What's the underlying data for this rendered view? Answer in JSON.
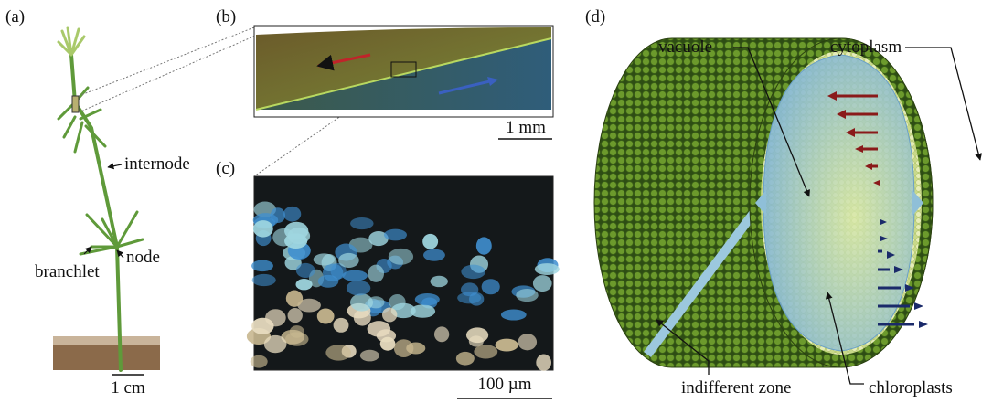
{
  "panels": {
    "a": {
      "label": "(a)",
      "annotations": [
        "internode",
        "branchlet",
        "node"
      ],
      "scale_bar": "1 cm"
    },
    "b": {
      "label": "(b)",
      "scale_bar": "1 mm"
    },
    "c": {
      "label": "(c)",
      "scale_bar": "100 µm"
    },
    "d": {
      "label": "(d)",
      "annotations": [
        "vacuole",
        "cytoplasm",
        "indifferent zone",
        "chloroplasts"
      ]
    }
  }
}
